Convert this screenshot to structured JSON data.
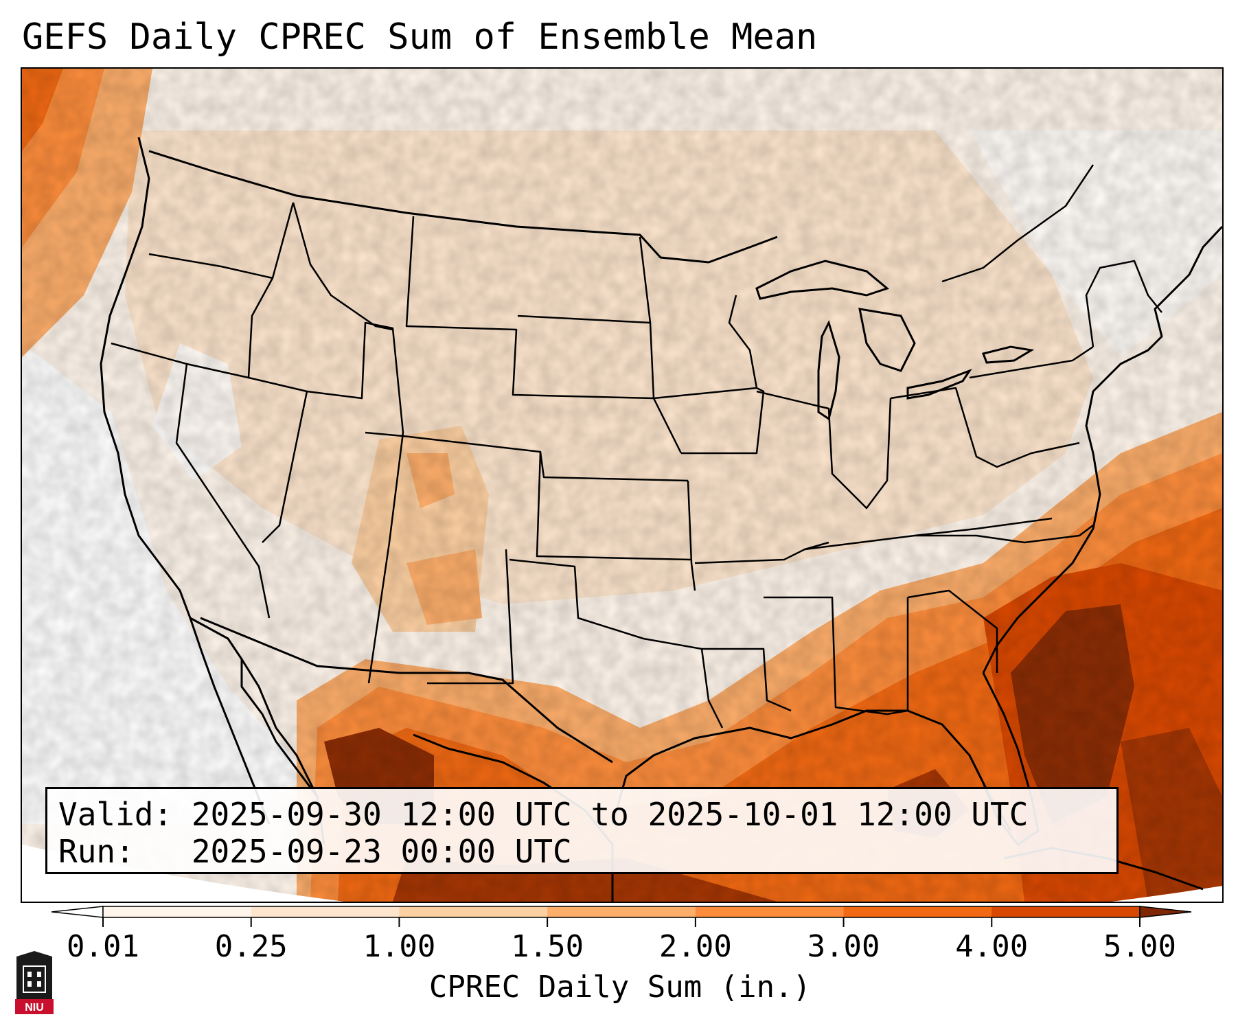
{
  "title": "GEFS Daily CPREC Sum of Ensemble Mean",
  "info": {
    "valid_label": "Valid: 2025-09-30 12:00 UTC to 2025-10-01 12:00 UTC",
    "run_label": "Run:   2025-09-23 00:00 UTC"
  },
  "colorbar": {
    "label": "CPREC Daily Sum (in.)",
    "ticks": [
      "0.01",
      "0.25",
      "1.00",
      "1.50",
      "2.00",
      "3.00",
      "4.00",
      "5.00"
    ],
    "colors": [
      "#fff5eb",
      "#fee6ce",
      "#fdd0a2",
      "#fdae6b",
      "#fd8d3c",
      "#f16913",
      "#d94801",
      "#8c2d04"
    ],
    "under_color": "#ffffff",
    "over_color": "#7f2704",
    "units": "in."
  },
  "logo": {
    "text": "NIU",
    "color": "#c8102e"
  },
  "map": {
    "projection": "lambert-conformal",
    "domain": "CONUS",
    "field": "CPREC daily sum, GEFS ensemble mean"
  }
}
